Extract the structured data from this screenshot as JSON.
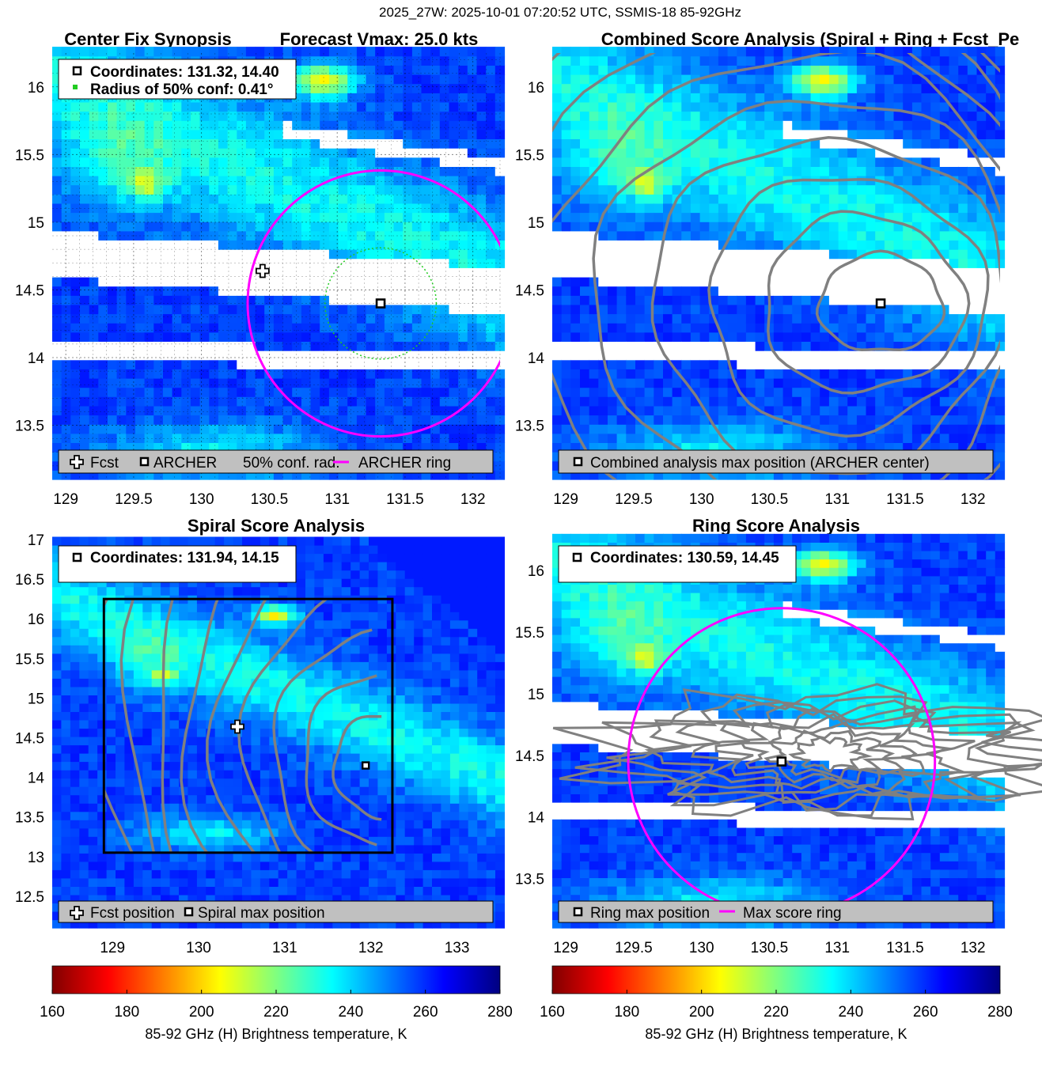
{
  "figure_title": "2025_27W: 2025-10-01 07:20:52 UTC, SSMIS-18 85-92GHz",
  "colors": {
    "background": "#ffffff",
    "magenta_ring": "#ff00ff",
    "green_conf": "#22cc22",
    "contour_gray": "#808080",
    "legend_gray": "#c0c0c0",
    "swath_gap": "#ffffff"
  },
  "icons": [
    "plus-marker-icon",
    "square-marker-icon",
    "dot-marker-icon",
    "line-marker-icon"
  ],
  "chart_data": [
    {
      "id": "panel1",
      "type": "heatmap",
      "title": "Center Fix Synopsis",
      "title_right": "Forecast Vmax: 25.0 kts",
      "xlabel": "",
      "ylabel": "",
      "xlim": [
        128.9,
        132.2
      ],
      "ylim": [
        13.1,
        16.25
      ],
      "xticks": [
        "129",
        "129.5",
        "130",
        "130.5",
        "131",
        "131.5",
        "132"
      ],
      "yticks": [
        "13.5",
        "14",
        "14.5",
        "15",
        "15.5",
        "16"
      ],
      "grid": true,
      "info_lines": [
        "Coordinates: 131.32, 14.40",
        "Radius of 50% conf: 0.41°"
      ],
      "legend": [
        "Fcst",
        "ARCHER",
        "50% conf. rad.",
        "ARCHER ring"
      ],
      "legend_placement": "bottom",
      "markers": {
        "fcst": [
          130.45,
          14.64
        ],
        "archer": [
          131.32,
          14.4
        ]
      },
      "ring": {
        "center": [
          131.32,
          14.4
        ],
        "radius_deg": 0.98
      },
      "conf_circle": {
        "center": [
          131.32,
          14.4
        ],
        "radius_deg": 0.41
      }
    },
    {
      "id": "panel2",
      "type": "heatmap",
      "title": "Combined Score Analysis (Spiral + Ring + Fcst_Pe",
      "xlabel": "",
      "ylabel": "",
      "xlim": [
        128.9,
        132.2
      ],
      "ylim": [
        13.1,
        16.25
      ],
      "xticks": [
        "129",
        "129.5",
        "130",
        "130.5",
        "131",
        "131.5",
        "132"
      ],
      "yticks": [
        "13.5",
        "14",
        "14.5",
        "15",
        "15.5",
        "16"
      ],
      "grid": false,
      "legend": [
        "Combined analysis max position (ARCHER center)"
      ],
      "legend_placement": "bottom",
      "markers": {
        "combined_max": [
          131.32,
          14.4
        ]
      },
      "contours": "concentric ellipses around combined max"
    },
    {
      "id": "panel3",
      "type": "heatmap",
      "title": "Spiral Score Analysis",
      "xlabel": "",
      "ylabel": "",
      "xlim": [
        128.3,
        133.5
      ],
      "ylim": [
        12.1,
        17
      ],
      "xticks": [
        "129",
        "130",
        "131",
        "132",
        "133"
      ],
      "yticks": [
        "12.5",
        "13",
        "13.5",
        "14",
        "14.5",
        "15",
        "15.5",
        "16",
        "16.5",
        "17"
      ],
      "grid": false,
      "info_lines": [
        "Coordinates: 131.94, 14.15"
      ],
      "legend": [
        "Fcst position",
        "Spiral max position"
      ],
      "legend_placement": "bottom",
      "markers": {
        "fcst": [
          130.45,
          14.64
        ],
        "spiral_max": [
          131.94,
          14.15
        ]
      },
      "search_box": {
        "x": [
          128.9,
          132.25
        ],
        "y": [
          13.05,
          16.25
        ]
      }
    },
    {
      "id": "panel4",
      "type": "heatmap",
      "title": "Ring Score Analysis",
      "xlabel": "",
      "ylabel": "",
      "xlim": [
        128.9,
        132.2
      ],
      "ylim": [
        13.1,
        16.25
      ],
      "xticks": [
        "129",
        "129.5",
        "130",
        "130.5",
        "131",
        "131.5",
        "132"
      ],
      "yticks": [
        "13.5",
        "14",
        "14.5",
        "15",
        "15.5",
        "16"
      ],
      "grid": false,
      "info_lines": [
        "Coordinates: 130.59, 14.45"
      ],
      "legend": [
        "Ring max position",
        "Max score ring"
      ],
      "legend_placement": "bottom",
      "markers": {
        "ring_max": [
          130.59,
          14.45
        ]
      },
      "ring": {
        "center": [
          130.59,
          14.45
        ],
        "radius_deg": 1.13
      }
    }
  ],
  "colorbars": [
    {
      "id": "cb-left",
      "ticks": [
        "160",
        "180",
        "200",
        "220",
        "240",
        "260",
        "280"
      ],
      "range": [
        160,
        280
      ],
      "label": "85-92 GHz (H) Brightness temperature, K"
    },
    {
      "id": "cb-right",
      "ticks": [
        "160",
        "180",
        "200",
        "220",
        "240",
        "260",
        "280"
      ],
      "range": [
        160,
        280
      ],
      "label": "85-92 GHz (H) Brightness temperature, K"
    }
  ]
}
